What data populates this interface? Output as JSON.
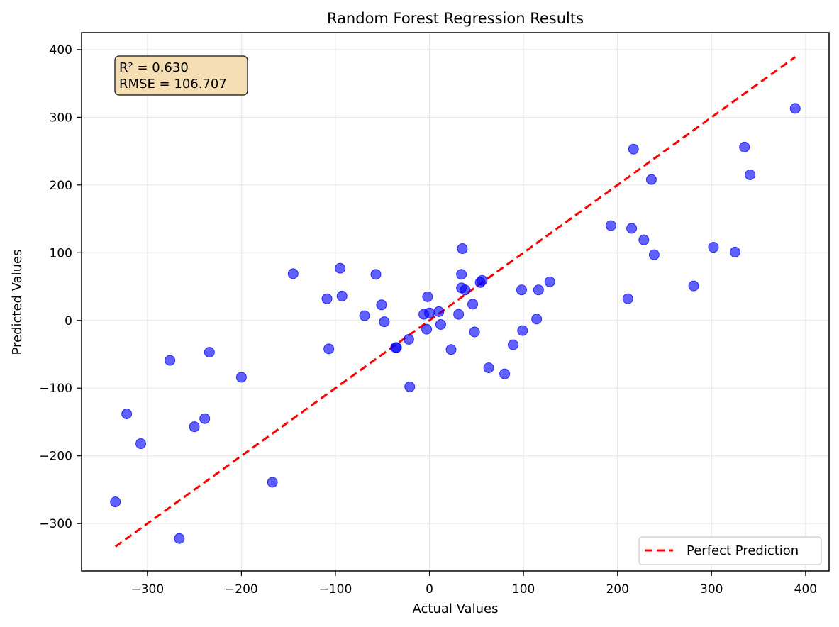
{
  "chart_data": {
    "type": "scatter",
    "title": "Random Forest Regression Results",
    "xlabel": "Actual Values",
    "ylabel": "Predicted Values",
    "xlim": [
      -370,
      425
    ],
    "ylim": [
      -370,
      425
    ],
    "x_ticks": [
      -300,
      -200,
      -100,
      0,
      100,
      200,
      300,
      400
    ],
    "y_ticks": [
      -300,
      -200,
      -100,
      0,
      100,
      200,
      300,
      400
    ],
    "x_tick_labels": [
      "−300",
      "−200",
      "−100",
      "0",
      "100",
      "200",
      "300",
      "400"
    ],
    "y_tick_labels": [
      "−300",
      "−200",
      "−100",
      "0",
      "100",
      "200",
      "300",
      "400"
    ],
    "grid": true,
    "legend_position": "lower-right",
    "metrics_box": {
      "line1": "R² = 0.630",
      "line2": "RMSE = 106.707"
    },
    "series": [
      {
        "kind": "scatter",
        "color": "#0000ff",
        "points": [
          [
            -334,
            -268
          ],
          [
            -322,
            -138
          ],
          [
            -307,
            -182
          ],
          [
            -276,
            -59
          ],
          [
            -266,
            -322
          ],
          [
            -250,
            -157
          ],
          [
            -239,
            -145
          ],
          [
            -234,
            -47
          ],
          [
            -200,
            -84
          ],
          [
            -167,
            -239
          ],
          [
            -145,
            69
          ],
          [
            -109,
            32
          ],
          [
            -107,
            -42
          ],
          [
            -95,
            77
          ],
          [
            -93,
            36
          ],
          [
            -69,
            7
          ],
          [
            -57,
            68
          ],
          [
            -51,
            23
          ],
          [
            -48,
            -2
          ],
          [
            -36,
            -40
          ],
          [
            -35,
            -40
          ],
          [
            -22,
            -28
          ],
          [
            -21,
            -98
          ],
          [
            -6,
            9
          ],
          [
            -3,
            -13
          ],
          [
            -2,
            35
          ],
          [
            0,
            11
          ],
          [
            10,
            13
          ],
          [
            12,
            -6
          ],
          [
            23,
            -43
          ],
          [
            31,
            9
          ],
          [
            34,
            68
          ],
          [
            34,
            48
          ],
          [
            35,
            106
          ],
          [
            38,
            45
          ],
          [
            46,
            24
          ],
          [
            48,
            -17
          ],
          [
            54,
            56
          ],
          [
            56,
            59
          ],
          [
            63,
            -70
          ],
          [
            80,
            -79
          ],
          [
            89,
            -36
          ],
          [
            98,
            45
          ],
          [
            99,
            -15
          ],
          [
            114,
            2
          ],
          [
            116,
            45
          ],
          [
            128,
            57
          ],
          [
            193,
            140
          ],
          [
            211,
            32
          ],
          [
            215,
            136
          ],
          [
            217,
            253
          ],
          [
            228,
            119
          ],
          [
            236,
            208
          ],
          [
            239,
            97
          ],
          [
            281,
            51
          ],
          [
            302,
            108
          ],
          [
            325,
            101
          ],
          [
            335,
            256
          ],
          [
            341,
            215
          ],
          [
            389,
            313
          ]
        ]
      },
      {
        "kind": "line",
        "name": "Perfect Prediction",
        "color": "#ff0000",
        "x": [
          -334,
          389
        ],
        "y": [
          -334,
          389
        ]
      }
    ]
  }
}
